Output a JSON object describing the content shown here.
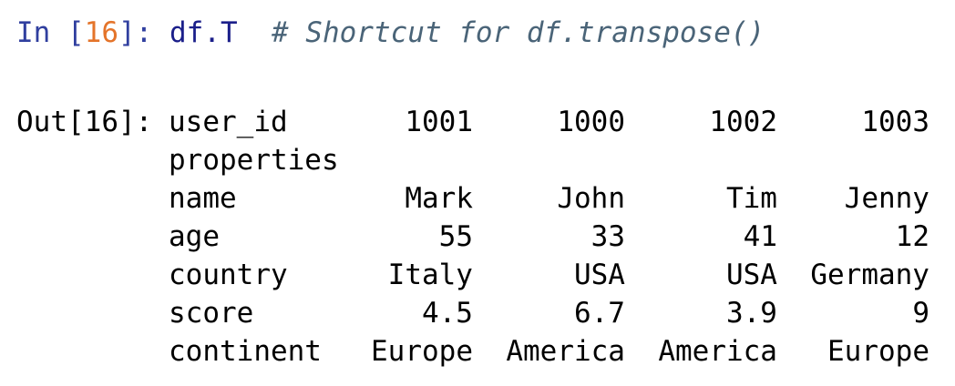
{
  "input_cell": {
    "prompt_in": "In [",
    "exec_count": "16",
    "prompt_close": "]: ",
    "code": "df.T",
    "comment": "  # Shortcut for df.transpose()"
  },
  "output_cell": {
    "prompt": "Out[16]:",
    "columns_name": "user_id",
    "columns": [
      "1001",
      "1000",
      "1002",
      "1003"
    ],
    "index_name": "properties",
    "rows": [
      {
        "label": "name",
        "values": [
          "Mark",
          "John",
          "Tim",
          "Jenny"
        ]
      },
      {
        "label": "age",
        "values": [
          "55",
          "33",
          "41",
          "12"
        ]
      },
      {
        "label": "country",
        "values": [
          "Italy",
          "USA",
          "USA",
          "Germany"
        ]
      },
      {
        "label": "score",
        "values": [
          "4.5",
          "6.7",
          "3.9",
          "9"
        ]
      },
      {
        "label": "continent",
        "values": [
          "Europe",
          "America",
          "America",
          "Europe"
        ]
      }
    ]
  },
  "colors": {
    "in_prompt": "#303f9f",
    "exec_count": "#e4742a",
    "code": "#1b1f8a",
    "comment": "#4a6478"
  }
}
